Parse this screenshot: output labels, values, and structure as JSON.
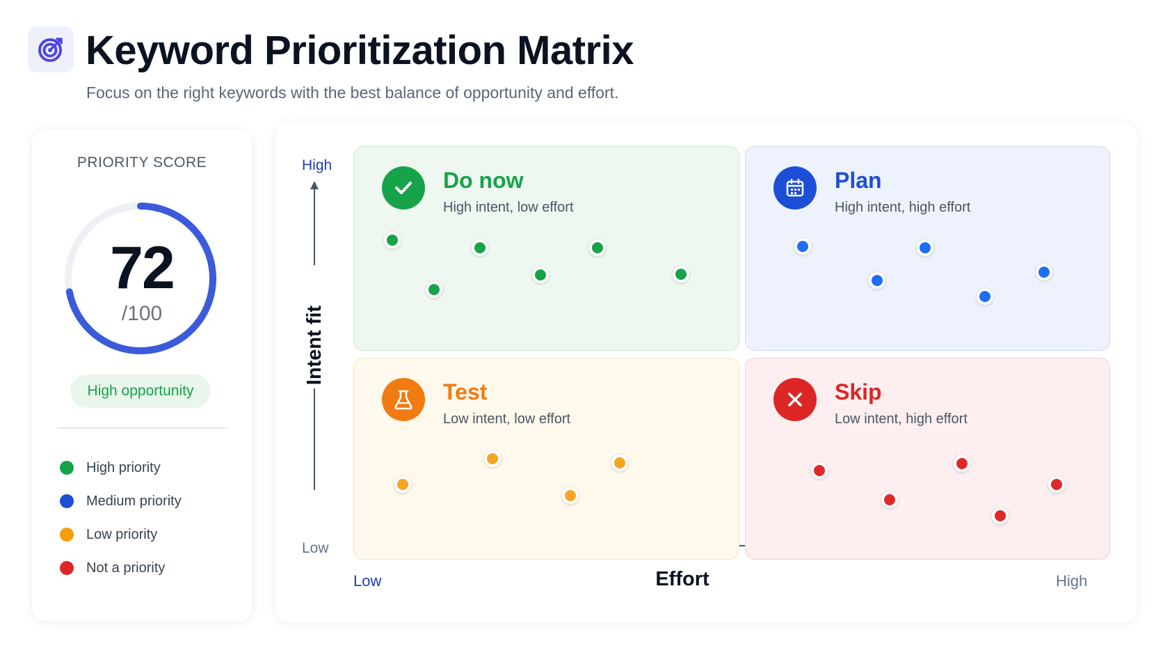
{
  "header": {
    "title": "Keyword Prioritization Matrix",
    "subtitle": "Focus on the right keywords with the best balance of opportunity and effort.",
    "logo_icon": "target-icon",
    "accent": "#4f46e5"
  },
  "score_card": {
    "label": "PRIORITY SCORE",
    "score": "72",
    "denominator": "/100",
    "score_value": 72,
    "score_max": 100,
    "badge": "High opportunity",
    "gauge_color": "#3b5bdb"
  },
  "legend": [
    {
      "label": "High priority",
      "color": "#16a34a"
    },
    {
      "label": "Medium priority",
      "color": "#1d4ed8"
    },
    {
      "label": "Low priority",
      "color": "#f59e0b"
    },
    {
      "label": "Not a priority",
      "color": "#dc2626"
    }
  ],
  "axes": {
    "y_title": "Intent fit",
    "y_high": "High",
    "y_low": "Low",
    "x_title": "Effort",
    "x_low": "Low",
    "x_high": "High"
  },
  "quadrants": {
    "do_now": {
      "title": "Do now",
      "subtitle": "High intent, low effort",
      "icon": "check-icon",
      "color": "#16a34a"
    },
    "plan": {
      "title": "Plan",
      "subtitle": "High intent, high effort",
      "icon": "calendar-icon",
      "color": "#1d4ed8"
    },
    "test": {
      "title": "Test",
      "subtitle": "Low intent, low effort",
      "icon": "flask-icon",
      "color": "#f07b12"
    },
    "skip": {
      "title": "Skip",
      "subtitle": "Low intent, high effort",
      "icon": "close-icon",
      "color": "#dc2626"
    }
  }
}
